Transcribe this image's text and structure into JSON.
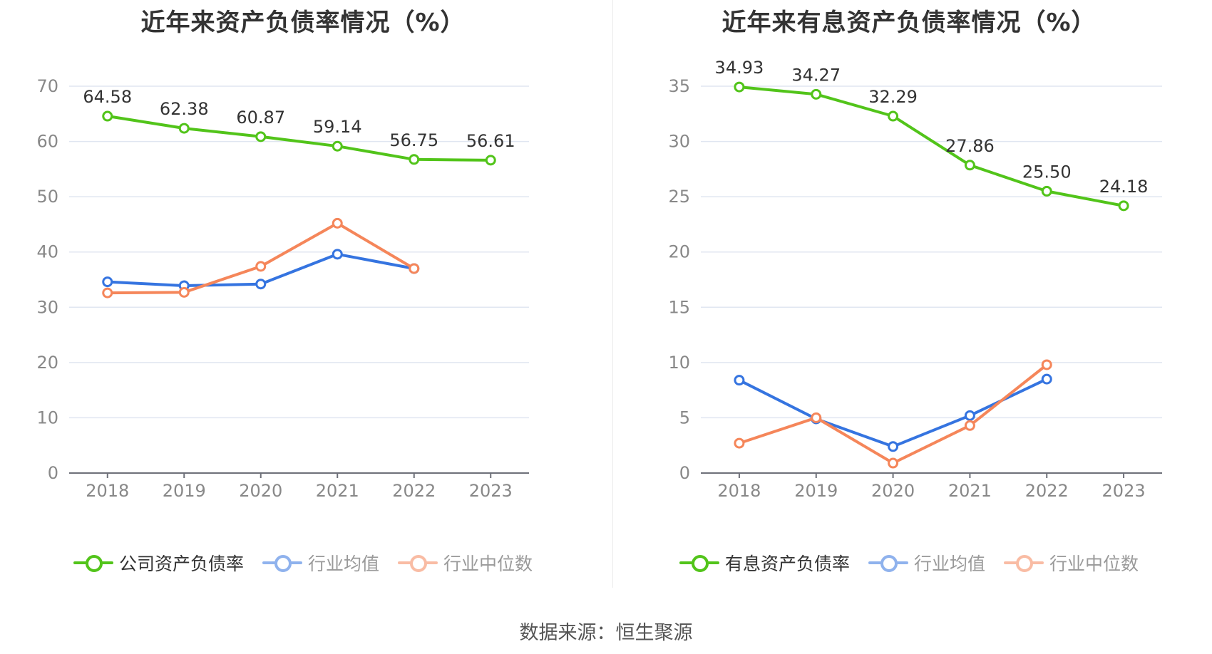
{
  "source": "数据来源：恒生聚源",
  "chart_data": [
    {
      "type": "line",
      "title": "近年来资产负债率情况（%）",
      "categories": [
        "2018",
        "2019",
        "2020",
        "2021",
        "2022",
        "2023"
      ],
      "ylim": [
        0,
        70
      ],
      "yticks": [
        0,
        10,
        20,
        30,
        40,
        50,
        60,
        70
      ],
      "grid": true,
      "legend_position": "bottom",
      "series": [
        {
          "name": "公司资产负债率",
          "color": "#52c41a",
          "values": [
            64.58,
            62.38,
            60.87,
            59.14,
            56.75,
            56.61
          ],
          "show_labels": true,
          "labels": [
            "64.58",
            "62.38",
            "60.87",
            "59.14",
            "56.75",
            "56.61"
          ]
        },
        {
          "name": "行业均值",
          "color": "#3574e0",
          "values": [
            34.6,
            33.9,
            34.2,
            39.6,
            37.0,
            null
          ],
          "show_labels": false
        },
        {
          "name": "行业中位数",
          "color": "#f5865a",
          "values": [
            32.6,
            32.7,
            37.4,
            45.2,
            37.0,
            null
          ],
          "show_labels": false
        }
      ]
    },
    {
      "type": "line",
      "title": "近年来有息资产负债率情况（%）",
      "categories": [
        "2018",
        "2019",
        "2020",
        "2021",
        "2022",
        "2023"
      ],
      "ylim": [
        0,
        35
      ],
      "yticks": [
        0,
        5,
        10,
        15,
        20,
        25,
        30,
        35
      ],
      "grid": true,
      "legend_position": "bottom",
      "series": [
        {
          "name": "有息资产负债率",
          "color": "#52c41a",
          "values": [
            34.93,
            34.27,
            32.29,
            27.86,
            25.5,
            24.18
          ],
          "show_labels": true,
          "labels": [
            "34.93",
            "34.27",
            "32.29",
            "27.86",
            "25.50",
            "24.18"
          ]
        },
        {
          "name": "行业均值",
          "color": "#3574e0",
          "values": [
            8.4,
            4.9,
            2.4,
            5.2,
            8.5,
            null
          ],
          "show_labels": false
        },
        {
          "name": "行业中位数",
          "color": "#f5865a",
          "values": [
            2.7,
            5.0,
            0.9,
            4.3,
            9.8,
            null
          ],
          "show_labels": false
        }
      ]
    }
  ]
}
